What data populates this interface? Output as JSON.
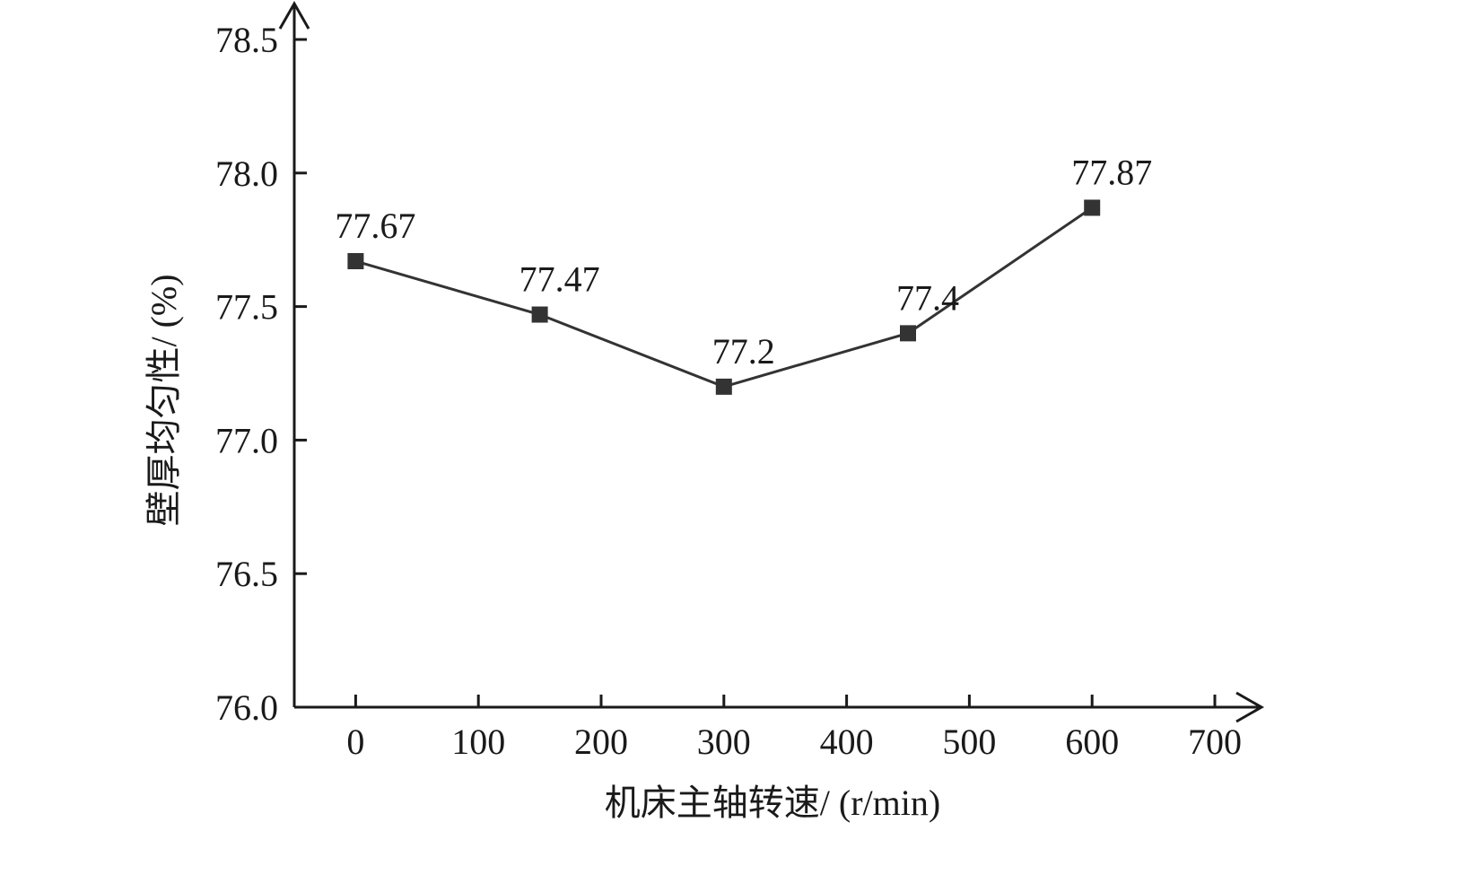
{
  "chart_data": {
    "type": "line",
    "title": "",
    "xlabel": "机床主轴转速/ (r/min)",
    "ylabel": "壁厚均匀性/ (%)",
    "xlim": [
      -50,
      700
    ],
    "ylim": [
      76.0,
      78.5
    ],
    "x_ticks": [
      0,
      100,
      200,
      300,
      400,
      500,
      600,
      700
    ],
    "x_tick_labels": [
      "0",
      "100",
      "200",
      "300",
      "400",
      "500",
      "600",
      "700"
    ],
    "y_ticks": [
      76.0,
      76.5,
      77.0,
      77.5,
      78.0,
      78.5
    ],
    "y_tick_labels": [
      "76.0",
      "76.5",
      "77.0",
      "77.5",
      "78.0",
      "78.5"
    ],
    "grid": false,
    "series": [
      {
        "marker": "square",
        "color": "#333333",
        "x": [
          0,
          150,
          300,
          450,
          600
        ],
        "y": [
          77.67,
          77.47,
          77.2,
          77.4,
          77.87
        ],
        "data_labels": [
          "77.67",
          "77.47",
          "77.2",
          "77.4",
          "77.87"
        ]
      }
    ]
  }
}
